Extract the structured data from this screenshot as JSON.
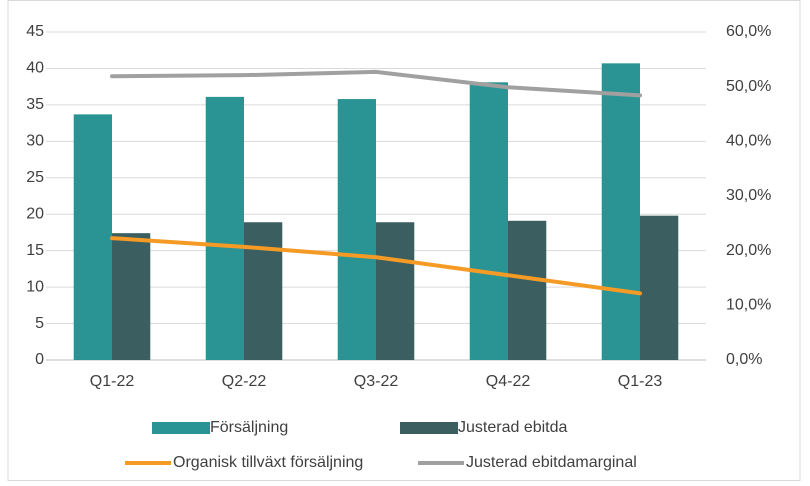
{
  "chart_data": {
    "type": "bar_line",
    "categories": [
      "Q1-22",
      "Q2-22",
      "Q3-22",
      "Q4-22",
      "Q1-23"
    ],
    "series": [
      {
        "name": "Försäljning",
        "color": "#2a9494",
        "kind": "bar",
        "values": [
          33.7,
          36.1,
          35.8,
          38.1,
          40.7
        ]
      },
      {
        "name": "Justerad ebitda",
        "color": "#3b5f60",
        "kind": "bar",
        "values": [
          17.4,
          18.9,
          18.9,
          19.1,
          19.8
        ]
      },
      {
        "name": "Organisk tillväxt försäljning",
        "color": "#f59b25",
        "kind": "line",
        "axis": "y2",
        "values": [
          22.3,
          20.7,
          18.8,
          15.5,
          12.2
        ]
      },
      {
        "name": "Justerad ebitdamarginal",
        "color": "#a0a0a0",
        "kind": "line",
        "axis": "y2",
        "values": [
          51.9,
          52.1,
          52.7,
          49.9,
          48.4
        ]
      }
    ],
    "ylim": [
      0,
      45
    ],
    "yticks": [
      0,
      5,
      10,
      15,
      20,
      25,
      30,
      35,
      40,
      45
    ],
    "y2lim": [
      0,
      60
    ],
    "y2ticks": [
      {
        "value": 0,
        "label": "0,0%"
      },
      {
        "value": 10,
        "label": "10,0%"
      },
      {
        "value": 20,
        "label": "20,0%"
      },
      {
        "value": 30,
        "label": "30,0%"
      },
      {
        "value": 40,
        "label": "40,0%"
      },
      {
        "value": 50,
        "label": "50,0%"
      },
      {
        "value": 60,
        "label": "60,0%"
      }
    ],
    "grid": true
  }
}
